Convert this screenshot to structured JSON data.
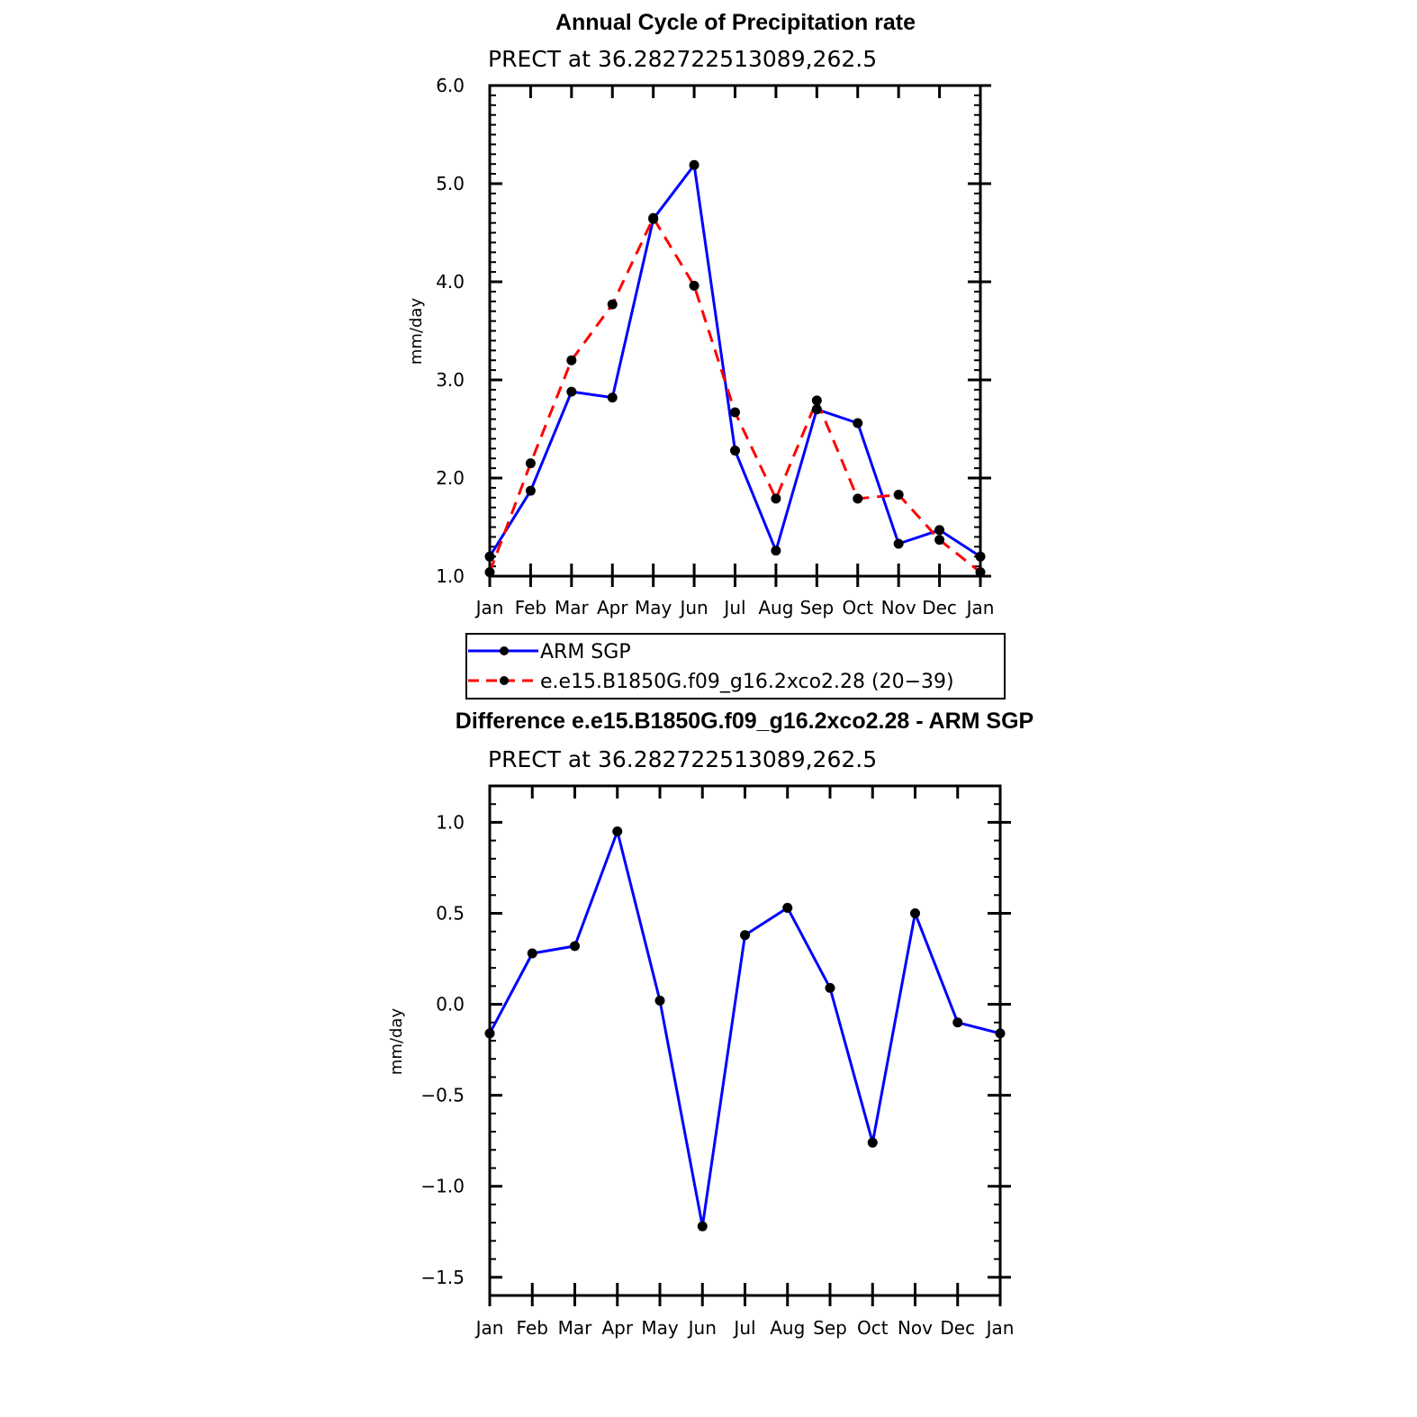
{
  "chart_data": [
    {
      "type": "line",
      "title": "Annual Cycle of Precipitation rate",
      "subtitle": "PRECT at 36.282722513089,262.5",
      "ylabel": "mm/day",
      "ylim": [
        1.0,
        6.0
      ],
      "yticks": [
        "1.0",
        "2.0",
        "3.0",
        "4.0",
        "5.0",
        "6.0"
      ],
      "categories": [
        "Jan",
        "Feb",
        "Mar",
        "Apr",
        "May",
        "Jun",
        "Jul",
        "Aug",
        "Sep",
        "Oct",
        "Nov",
        "Dec",
        "Jan"
      ],
      "grid": false,
      "legend": "bottom",
      "series": [
        {
          "name": "ARM SGP",
          "color": "#0000ff",
          "dash": "solid",
          "values": [
            1.2,
            1.87,
            2.88,
            2.82,
            4.64,
            5.19,
            2.28,
            1.26,
            2.7,
            2.56,
            1.33,
            1.47,
            1.2
          ]
        },
        {
          "name": "e.e15.B1850G.f09_g16.2xco2.28 (20−39)",
          "color": "#ff0000",
          "dash": "dashed",
          "values": [
            1.04,
            2.15,
            3.2,
            3.77,
            4.65,
            3.96,
            2.67,
            1.79,
            2.79,
            1.79,
            1.83,
            1.37,
            1.04
          ]
        }
      ]
    },
    {
      "type": "line",
      "title": "Difference e.e15.B1850G.f09_g16.2xco2.28 - ARM SGP",
      "subtitle": "PRECT at 36.282722513089,262.5",
      "ylabel": "mm/day",
      "ylim": [
        -1.6,
        1.2
      ],
      "yticks": [
        "−1.5",
        "−1.0",
        "−0.5",
        "0.0",
        "0.5",
        "1.0"
      ],
      "categories": [
        "Jan",
        "Feb",
        "Mar",
        "Apr",
        "May",
        "Jun",
        "Jul",
        "Aug",
        "Sep",
        "Oct",
        "Nov",
        "Dec",
        "Jan"
      ],
      "grid": false,
      "series": [
        {
          "color": "#0000ff",
          "dash": "solid",
          "values": [
            -0.16,
            0.28,
            0.32,
            0.95,
            0.02,
            -1.22,
            0.38,
            0.53,
            0.09,
            -0.76,
            0.5,
            -0.1,
            -0.16
          ]
        }
      ]
    }
  ]
}
